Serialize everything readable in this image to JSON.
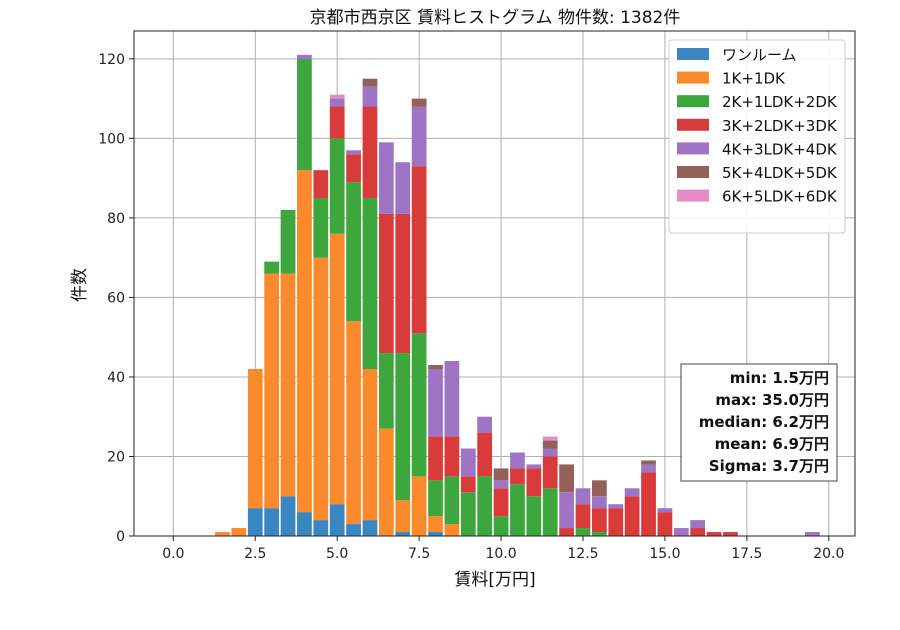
{
  "chart_data": {
    "type": "bar",
    "stacked": true,
    "title": "京都市西京区 賃料ヒストグラム  物件数: 1382件",
    "xlabel": "賃料[万円]",
    "ylabel": "件数",
    "xlim": [
      -1.2,
      20.8
    ],
    "ylim": [
      0,
      127
    ],
    "xticks": [
      "0.0",
      "2.5",
      "5.0",
      "7.5",
      "10.0",
      "12.5",
      "15.0",
      "17.5",
      "20.0"
    ],
    "yticks": [
      "0",
      "20",
      "40",
      "60",
      "80",
      "100",
      "120"
    ],
    "grid": true,
    "legend_position": "top-right",
    "bar_width": 0.45,
    "x": [
      1.5,
      2.0,
      2.5,
      3.0,
      3.5,
      4.0,
      4.5,
      5.0,
      5.5,
      6.0,
      6.5,
      7.0,
      7.5,
      8.0,
      8.5,
      9.0,
      9.5,
      10.0,
      10.5,
      11.0,
      11.5,
      12.0,
      12.5,
      13.0,
      13.5,
      14.0,
      14.5,
      15.0,
      15.5,
      16.0,
      16.5,
      17.0,
      19.5
    ],
    "series": [
      {
        "name": "ワンルーム",
        "color": "#3a86c2",
        "values": [
          0,
          0,
          7,
          7,
          10,
          6,
          4,
          8,
          3,
          4,
          0,
          1,
          0,
          1,
          0,
          0,
          0,
          0,
          0,
          0,
          0,
          0,
          0,
          0,
          0,
          0,
          0,
          0,
          0,
          0,
          0,
          0,
          0
        ]
      },
      {
        "name": "1K+1DK",
        "color": "#fb8a2c",
        "values": [
          1,
          2,
          35,
          59,
          56,
          86,
          66,
          68,
          51,
          38,
          27,
          8,
          15,
          4,
          3,
          0,
          0,
          0,
          0,
          0,
          0,
          0,
          0,
          0,
          0,
          0,
          0,
          0,
          0,
          0,
          0,
          0,
          0
        ]
      },
      {
        "name": "2K+1LDK+2DK",
        "color": "#3da63d",
        "values": [
          0,
          0,
          0,
          3,
          16,
          28,
          15,
          24,
          35,
          43,
          19,
          37,
          36,
          9,
          12,
          11,
          15,
          5,
          13,
          10,
          12,
          0,
          2,
          1,
          0,
          0,
          0,
          0,
          0,
          0,
          0,
          0,
          0
        ]
      },
      {
        "name": "3K+2LDK+3DK",
        "color": "#d93a3a",
        "values": [
          0,
          0,
          0,
          0,
          0,
          0,
          7,
          8,
          7,
          23,
          35,
          35,
          42,
          11,
          10,
          4,
          11,
          7,
          4,
          7,
          8,
          2,
          6,
          6,
          7,
          10,
          16,
          6,
          0,
          2,
          1,
          1,
          0
        ]
      },
      {
        "name": "4K+3LDK+4DK",
        "color": "#9f74c4",
        "values": [
          0,
          0,
          0,
          0,
          0,
          1,
          0,
          2,
          1,
          5,
          18,
          13,
          15,
          17,
          19,
          7,
          4,
          2,
          4,
          1,
          2,
          9,
          4,
          3,
          1,
          2,
          2,
          1,
          2,
          2,
          0,
          0,
          1
        ]
      },
      {
        "name": "5K+4LDK+5DK",
        "color": "#93615a",
        "values": [
          0,
          0,
          0,
          0,
          0,
          0,
          0,
          0,
          0,
          2,
          0,
          0,
          2,
          1,
          0,
          0,
          0,
          3,
          0,
          0,
          2,
          7,
          0,
          4,
          0,
          0,
          1,
          0,
          0,
          0,
          0,
          0,
          0
        ]
      },
      {
        "name": "6K+5LDK+6DK",
        "color": "#e68ac8",
        "values": [
          0,
          0,
          0,
          0,
          0,
          0,
          0,
          1,
          0,
          0,
          0,
          0,
          0,
          0,
          0,
          0,
          0,
          0,
          0,
          0,
          1,
          0,
          0,
          0,
          0,
          0,
          0,
          0,
          0,
          0,
          0,
          0,
          0
        ]
      }
    ],
    "stats": {
      "min": "min: 1.5万円",
      "max": "max: 35.0万円",
      "median": "median: 6.2万円",
      "mean": "mean: 6.9万円",
      "sigma": "Sigma: 3.7万円"
    }
  }
}
